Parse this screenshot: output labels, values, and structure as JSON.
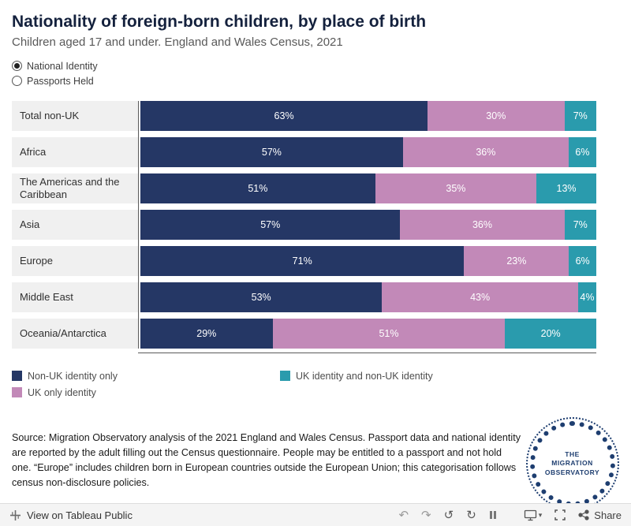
{
  "header": {
    "title": "Nationality of foreign-born children, by place of birth",
    "subtitle": "Children aged 17 and under. England and Wales Census, 2021"
  },
  "controls": {
    "options": [
      {
        "label": "National Identity",
        "selected": true
      },
      {
        "label": "Passports Held",
        "selected": false
      }
    ]
  },
  "chart_data": {
    "type": "bar",
    "orientation": "horizontal_stacked",
    "unit": "%",
    "xlim": [
      0,
      100
    ],
    "legend_position": "bottom",
    "categories": [
      "Total non-UK",
      "Africa",
      "The Americas and the Caribbean",
      "Asia",
      "Europe",
      "Middle East",
      "Oceania/Antarctica"
    ],
    "series": [
      {
        "name": "Non-UK identity only",
        "color": "#253765",
        "values": [
          63,
          57,
          51,
          57,
          71,
          53,
          29
        ]
      },
      {
        "name": "UK only identity",
        "color": "#c289b8",
        "values": [
          30,
          36,
          35,
          36,
          23,
          43,
          51
        ]
      },
      {
        "name": "UK identity and non-UK identity",
        "color": "#2a9bad",
        "values": [
          7,
          6,
          13,
          7,
          6,
          4,
          20
        ]
      }
    ]
  },
  "source": {
    "text": "Source: Migration Observatory analysis of the 2021 England and Wales Census. Passport data and national identity are reported by the adult filling out the Census questionnaire. People may be entitled to a passport and not hold one. “Europe” includes children born in European countries outside the European Union; this categorisation follows census non-disclosure policies."
  },
  "logo": {
    "line1": "THE",
    "line2": "MIGRATION",
    "line3": "OBSERVATORY"
  },
  "toolbar": {
    "view_label": "View on Tableau Public",
    "share_label": "Share",
    "glyphs": {
      "undo": "↶",
      "redo": "↷",
      "reset": "↺",
      "refresh": "↻",
      "caret": "▾"
    },
    "icons": [
      "tableau-logo",
      "undo",
      "redo",
      "reset",
      "refresh",
      "pause",
      "download",
      "fullscreen",
      "share"
    ]
  },
  "colors": {
    "navy": "#253765",
    "mauve": "#c289b8",
    "teal": "#2a9bad",
    "label_bg": "#f0f0f0"
  }
}
